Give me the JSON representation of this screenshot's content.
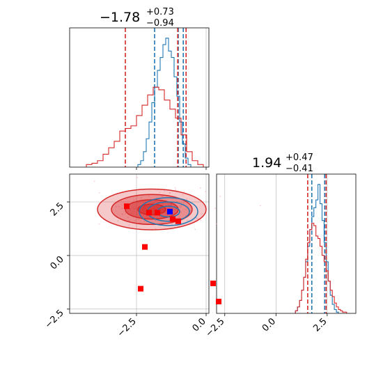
{
  "colors": {
    "series_a": "#1f77b4",
    "series_b": "#d62728",
    "marker_red": "#ff0000",
    "marker_blue": "#0000ff",
    "grid": "#b0b0b0"
  },
  "titles": {
    "param1": {
      "median": "−1.78",
      "plus": "+0.73",
      "minus": "−0.94"
    },
    "param2": {
      "median": "1.94",
      "plus": "+0.47",
      "minus": "−0.41"
    }
  },
  "chart_data": [
    {
      "panel": "param1-marginal",
      "type": "histogram",
      "x_range": [
        -4.9,
        0.1
      ],
      "grid_x": [
        0.0
      ],
      "series": [
        {
          "color": "#1f77b4",
          "style": "step",
          "x": [
            -2.4,
            -2.3,
            -2.2,
            -2.1,
            -2.0,
            -1.9,
            -1.8,
            -1.7,
            -1.6,
            -1.5,
            -1.4,
            -1.3,
            -1.2,
            -1.1,
            -1.0,
            -0.9,
            -0.8,
            -0.7,
            -0.6
          ],
          "density": [
            0.02,
            0.05,
            0.12,
            0.22,
            0.35,
            0.5,
            0.62,
            0.75,
            0.85,
            0.95,
            1.0,
            0.9,
            0.85,
            0.7,
            0.55,
            0.35,
            0.18,
            0.07,
            0.02
          ],
          "quantile_lines": [
            -1.85,
            -1.0,
            -0.82
          ]
        },
        {
          "color": "#d62728",
          "style": "step",
          "x": [
            -4.2,
            -4.0,
            -3.8,
            -3.6,
            -3.4,
            -3.2,
            -3.0,
            -2.8,
            -2.6,
            -2.4,
            -2.2,
            -2.0,
            -1.8,
            -1.6,
            -1.4,
            -1.2,
            -1.0,
            -0.8,
            -0.6,
            -0.4,
            -0.2
          ],
          "density": [
            0.02,
            0.03,
            0.05,
            0.1,
            0.15,
            0.2,
            0.28,
            0.3,
            0.32,
            0.4,
            0.48,
            0.56,
            0.62,
            0.6,
            0.52,
            0.45,
            0.38,
            0.25,
            0.12,
            0.05,
            0.02
          ],
          "quantile_lines": [
            -2.9,
            -1.02,
            -0.72
          ]
        }
      ]
    },
    {
      "panel": "param2-marginal",
      "type": "histogram",
      "x_range": [
        -2.9,
        3.9
      ],
      "xticks": [
        "−2.5",
        "0.0",
        "2.5"
      ],
      "xtick_values": [
        -2.5,
        0.0,
        2.5
      ],
      "grid_x": [
        -2.5,
        0.0,
        2.5
      ],
      "series": [
        {
          "color": "#1f77b4",
          "style": "step",
          "x": [
            1.0,
            1.1,
            1.2,
            1.3,
            1.4,
            1.5,
            1.6,
            1.7,
            1.8,
            1.9,
            2.0,
            2.1,
            2.2,
            2.3,
            2.4,
            2.5,
            2.6,
            2.7,
            2.8,
            2.9,
            3.0
          ],
          "density": [
            0.02,
            0.05,
            0.1,
            0.18,
            0.28,
            0.4,
            0.52,
            0.65,
            0.75,
            0.82,
            0.88,
            1.0,
            0.85,
            0.72,
            0.55,
            0.4,
            0.25,
            0.14,
            0.07,
            0.03,
            0.01
          ],
          "quantile_lines": [
            1.75,
            2.38
          ]
        },
        {
          "color": "#d62728",
          "style": "step",
          "x": [
            1.0,
            1.1,
            1.2,
            1.3,
            1.4,
            1.5,
            1.6,
            1.7,
            1.8,
            1.9,
            2.0,
            2.1,
            2.2,
            2.3,
            2.4,
            2.5,
            2.6,
            2.7,
            2.8,
            2.9,
            3.0,
            3.1,
            3.2,
            3.3,
            3.4
          ],
          "density": [
            0.02,
            0.05,
            0.1,
            0.18,
            0.28,
            0.42,
            0.55,
            0.65,
            0.7,
            0.68,
            0.6,
            0.58,
            0.52,
            0.45,
            0.4,
            0.33,
            0.25,
            0.18,
            0.13,
            0.08,
            0.05,
            0.03,
            0.02,
            0.01,
            0.01
          ],
          "quantile_lines": [
            1.55,
            2.45
          ]
        }
      ]
    },
    {
      "panel": "joint",
      "type": "scatter",
      "x_range": [
        -4.9,
        0.1
      ],
      "y_range": [
        -2.7,
        3.8
      ],
      "xticks": [
        "−2.5",
        "0.0"
      ],
      "xtick_values": [
        -2.5,
        0.0
      ],
      "yticks": [
        "−2.5",
        "0.0",
        "2.5"
      ],
      "ytick_values": [
        -2.5,
        0.0,
        2.5
      ],
      "grid_x": [
        -2.5,
        0.0
      ],
      "grid_y": [
        -2.5,
        0.0,
        2.5
      ],
      "density_contours": [
        {
          "color": "#d62728",
          "cx": -1.95,
          "cy": 2.15,
          "levels": [
            [
              1.95,
              0.95
            ],
            [
              1.45,
              0.7
            ],
            [
              0.95,
              0.45
            ],
            [
              0.5,
              0.25
            ]
          ]
        },
        {
          "color": "#1f77b4",
          "cx": -1.35,
          "cy": 2.05,
          "levels": [
            [
              1.05,
              0.65
            ],
            [
              0.75,
              0.45
            ],
            [
              0.4,
              0.25
            ]
          ]
        }
      ],
      "points_red": [
        {
          "x": -2.85,
          "y": 2.3
        },
        {
          "x": -2.05,
          "y": 2.0
        },
        {
          "x": -1.75,
          "y": 2.0
        },
        {
          "x": -1.2,
          "y": 1.7
        },
        {
          "x": -1.0,
          "y": 1.6
        },
        {
          "x": -2.2,
          "y": 0.4
        },
        {
          "x": -2.35,
          "y": -1.55
        },
        {
          "x": 0.25,
          "y": -1.3
        },
        {
          "x": 0.45,
          "y": -2.15
        }
      ],
      "points_blue": [
        {
          "x": -1.3,
          "y": 2.05
        }
      ]
    }
  ]
}
